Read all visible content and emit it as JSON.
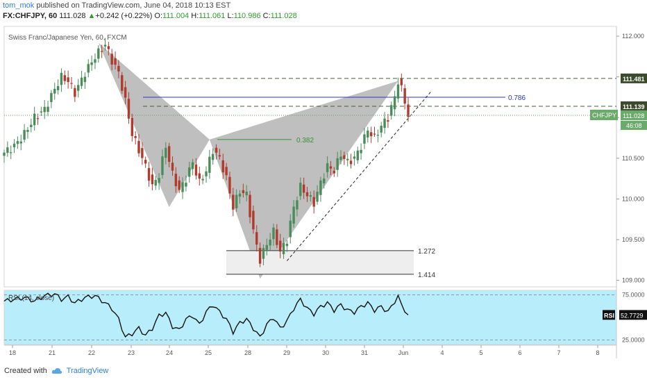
{
  "header": {
    "user": "tom_mok",
    "published": "published on TradingView.com, June 04, 2018 10:13 EST",
    "symbol": "FX:CHFJPY, 60",
    "last": "111.028",
    "change": "+0.242 (+0.22%)",
    "o_label": "O:",
    "o_val": "111.004",
    "h_label": "H:",
    "h_val": "111.061",
    "l_label": "L:",
    "l_val": "110.986",
    "c_label": "C:",
    "c_val": "111.028"
  },
  "footer": {
    "created": "Created with",
    "brand": "TradingView"
  },
  "colors": {
    "up": "#4a8c5a",
    "down": "#b03a2e",
    "pattern": "#a9a9a9",
    "rsi_bg": "#b8eefc",
    "rsi_line": "#111111",
    "level_786": "#3030c8",
    "level_382": "#3a8f3a"
  },
  "chart_data": {
    "type": "candlestick",
    "title": "Swiss Franc/Japanese Yen, 60, FXCM",
    "symbol_label": "CHFJPY",
    "last_price_label": "111.028",
    "countdown_label": "46:08",
    "ylim": [
      108.92,
      112.12
    ],
    "y_ticks": [
      "112.000",
      "111.500",
      "111.000",
      "110.500",
      "110.000",
      "109.500",
      "109.000"
    ],
    "x_ticks": [
      "18",
      "21",
      "22",
      "23",
      "24",
      "25",
      "28",
      "29",
      "30",
      "31",
      "Jun",
      "4",
      "5",
      "6",
      "7",
      "8"
    ],
    "price_path": [
      [
        0,
        110.57
      ],
      [
        3,
        110.65
      ],
      [
        6,
        110.8
      ],
      [
        9,
        111.0
      ],
      [
        12,
        111.1
      ],
      [
        15,
        111.35
      ],
      [
        17,
        111.5
      ],
      [
        19,
        111.45
      ],
      [
        21,
        111.3
      ],
      [
        24,
        111.55
      ],
      [
        27,
        111.75
      ],
      [
        30,
        111.9
      ],
      [
        32,
        111.7
      ],
      [
        34,
        111.55
      ],
      [
        36,
        111.2
      ],
      [
        38,
        110.8
      ],
      [
        40,
        110.6
      ],
      [
        42,
        110.4
      ],
      [
        44,
        110.15
      ],
      [
        46,
        110.3
      ],
      [
        48,
        110.65
      ],
      [
        50,
        110.3
      ],
      [
        52,
        110.1
      ],
      [
        54,
        110.25
      ],
      [
        56,
        110.45
      ],
      [
        58,
        110.2
      ],
      [
        60,
        110.35
      ],
      [
        62,
        110.6
      ],
      [
        64,
        110.5
      ],
      [
        66,
        110.25
      ],
      [
        68,
        109.9
      ],
      [
        70,
        110.1
      ],
      [
        72,
        110.05
      ],
      [
        74,
        109.6
      ],
      [
        76,
        109.25
      ],
      [
        78,
        109.45
      ],
      [
        80,
        109.6
      ],
      [
        82,
        109.35
      ],
      [
        84,
        109.5
      ],
      [
        86,
        109.9
      ],
      [
        88,
        110.15
      ],
      [
        90,
        110.05
      ],
      [
        92,
        109.95
      ],
      [
        94,
        110.2
      ],
      [
        96,
        110.4
      ],
      [
        98,
        110.35
      ],
      [
        100,
        110.55
      ],
      [
        102,
        110.45
      ],
      [
        104,
        110.5
      ],
      [
        106,
        110.65
      ],
      [
        108,
        110.85
      ],
      [
        110,
        110.75
      ],
      [
        112,
        110.9
      ],
      [
        114,
        111.0
      ],
      [
        116,
        111.25
      ],
      [
        117,
        111.45
      ],
      [
        118,
        111.35
      ],
      [
        120,
        111.03
      ]
    ],
    "harmonic_pattern": {
      "X": [
        28,
        111.92
      ],
      "A": [
        49,
        109.9
      ],
      "B": [
        61,
        110.73
      ],
      "C": [
        76,
        109.02
      ],
      "D": [
        117,
        111.45
      ]
    },
    "levels": [
      {
        "label": "",
        "price": 111.481,
        "style": "dashed"
      },
      {
        "label": "111.139",
        "price": 111.139,
        "style": "dashed"
      },
      {
        "label": "0.786",
        "price": 111.25,
        "style": "solid"
      },
      {
        "label": "0.382",
        "price": 110.73,
        "style": "solid"
      },
      {
        "label": "1.272",
        "price": 109.365,
        "style": "solid"
      },
      {
        "label": "1.414",
        "price": 109.075,
        "style": "solid"
      }
    ],
    "price_labels": [
      "111.481",
      "111.139"
    ],
    "trendline": {
      "from": [
        84,
        109.24
      ],
      "to": [
        127,
        111.33
      ]
    },
    "rsi": {
      "label": "RSI (14, close)",
      "value_label": "52.7729",
      "tag": "RSI",
      "ylim": [
        20,
        80
      ],
      "bands": [
        75,
        25
      ],
      "band_labels": [
        "75.0000",
        "25.0000"
      ],
      "values": [
        [
          0,
          68
        ],
        [
          3,
          70
        ],
        [
          6,
          72
        ],
        [
          9,
          68
        ],
        [
          12,
          74
        ],
        [
          15,
          76
        ],
        [
          17,
          70
        ],
        [
          19,
          73
        ],
        [
          21,
          66
        ],
        [
          24,
          72
        ],
        [
          27,
          74
        ],
        [
          30,
          66
        ],
        [
          32,
          60
        ],
        [
          34,
          48
        ],
        [
          36,
          28
        ],
        [
          38,
          32
        ],
        [
          40,
          38
        ],
        [
          42,
          30
        ],
        [
          44,
          38
        ],
        [
          46,
          52
        ],
        [
          48,
          55
        ],
        [
          50,
          40
        ],
        [
          52,
          36
        ],
        [
          54,
          48
        ],
        [
          56,
          52
        ],
        [
          58,
          42
        ],
        [
          60,
          56
        ],
        [
          62,
          64
        ],
        [
          64,
          56
        ],
        [
          66,
          48
        ],
        [
          68,
          34
        ],
        [
          70,
          44
        ],
        [
          72,
          48
        ],
        [
          74,
          38
        ],
        [
          76,
          28
        ],
        [
          78,
          42
        ],
        [
          80,
          50
        ],
        [
          82,
          38
        ],
        [
          84,
          46
        ],
        [
          86,
          60
        ],
        [
          88,
          70
        ],
        [
          90,
          60
        ],
        [
          92,
          54
        ],
        [
          94,
          62
        ],
        [
          96,
          66
        ],
        [
          98,
          58
        ],
        [
          100,
          64
        ],
        [
          102,
          58
        ],
        [
          104,
          56
        ],
        [
          106,
          62
        ],
        [
          108,
          66
        ],
        [
          110,
          58
        ],
        [
          112,
          62
        ],
        [
          114,
          56
        ],
        [
          116,
          68
        ],
        [
          117,
          73
        ],
        [
          118,
          64
        ],
        [
          120,
          52.77
        ]
      ]
    }
  }
}
